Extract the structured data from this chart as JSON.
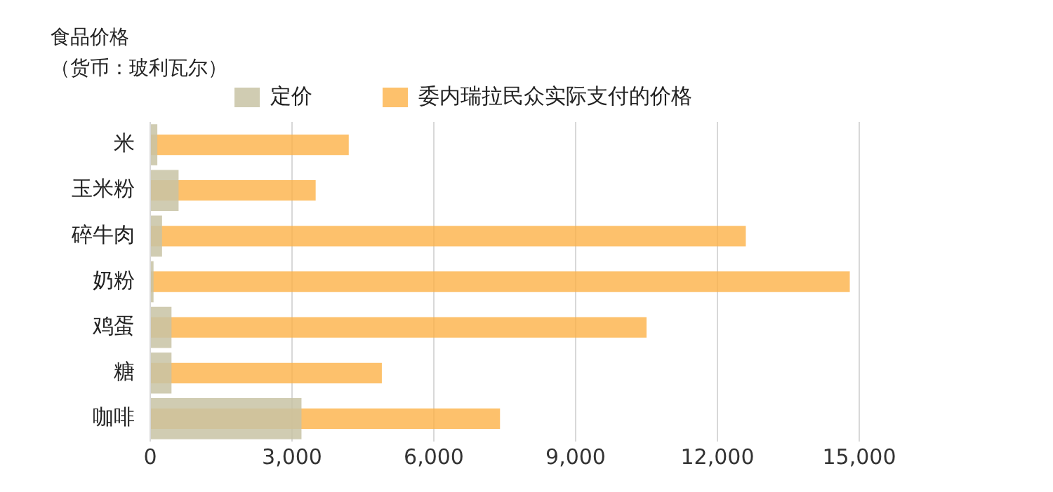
{
  "chart_data": {
    "type": "bar",
    "orientation": "horizontal",
    "title": "食品价格",
    "subtitle": "（货币：玻利瓦尔）",
    "categories": [
      "米",
      "玉米粉",
      "碎牛肉",
      "奶粉",
      "鸡蛋",
      "糖",
      "咖啡"
    ],
    "series": [
      {
        "name": "定价",
        "color": "#c8c3a5",
        "values": [
          150,
          600,
          250,
          70,
          450,
          450,
          3200
        ]
      },
      {
        "name": "委内瑞拉民众实际支付的价格",
        "color": "#fdb147",
        "values": [
          4200,
          3500,
          12600,
          14800,
          10500,
          4900,
          7400
        ]
      }
    ],
    "xlim": [
      0,
      15000
    ],
    "xticks": [
      0,
      {
        "value": 3000,
        "label": "3,000"
      },
      {
        "value": 6000,
        "label": "6,000"
      },
      {
        "value": 9000,
        "label": "9,000"
      },
      {
        "value": 12000,
        "label": "12,000"
      },
      {
        "value": 15000,
        "label": "15,000"
      }
    ],
    "grid": "x",
    "legend": "top"
  }
}
